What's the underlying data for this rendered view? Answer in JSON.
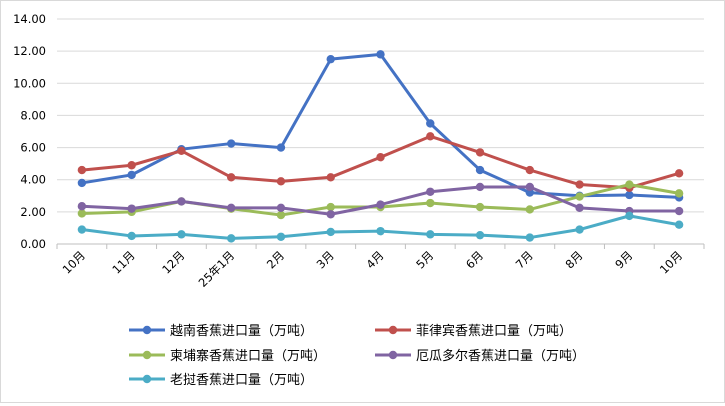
{
  "chart_data": {
    "type": "line",
    "title": "",
    "xlabel": "",
    "ylabel": "",
    "categories": [
      "10月",
      "11月",
      "12月",
      "25年1月",
      "2月",
      "3月",
      "4月",
      "5月",
      "6月",
      "7月",
      "8月",
      "9月",
      "10月"
    ],
    "ylim": [
      0,
      14
    ],
    "yticks": [
      "0.00",
      "2.00",
      "4.00",
      "6.00",
      "8.00",
      "10.00",
      "12.00",
      "14.00"
    ],
    "grid": "horizontal",
    "legend_position": "bottom",
    "series": [
      {
        "name": "越南香蕉进口量（万吨）",
        "color": "#4472c4",
        "values": [
          3.8,
          4.3,
          5.9,
          6.25,
          6.0,
          11.5,
          11.8,
          7.5,
          4.6,
          3.2,
          3.0,
          3.05,
          2.9
        ]
      },
      {
        "name": "菲律宾香蕉进口量（万吨）",
        "color": "#c0504d",
        "values": [
          4.6,
          4.9,
          5.8,
          4.15,
          3.9,
          4.15,
          5.4,
          6.7,
          5.7,
          4.6,
          3.7,
          3.5,
          4.4
        ]
      },
      {
        "name": "柬埔寨香蕉进口量（万吨）",
        "color": "#9bbb59",
        "values": [
          1.9,
          2.0,
          2.65,
          2.2,
          1.8,
          2.3,
          2.3,
          2.55,
          2.3,
          2.15,
          2.95,
          3.7,
          3.15
        ]
      },
      {
        "name": "厄瓜多尔香蕉进口量（万吨）",
        "color": "#8064a2",
        "values": [
          2.35,
          2.2,
          2.65,
          2.25,
          2.25,
          1.85,
          2.45,
          3.25,
          3.55,
          3.55,
          2.25,
          2.05,
          2.05
        ]
      },
      {
        "name": "老挝香蕉进口量（万吨）",
        "color": "#4bacc6",
        "values": [
          0.9,
          0.5,
          0.6,
          0.35,
          0.45,
          0.75,
          0.8,
          0.6,
          0.55,
          0.4,
          0.9,
          1.75,
          1.2
        ]
      }
    ]
  }
}
